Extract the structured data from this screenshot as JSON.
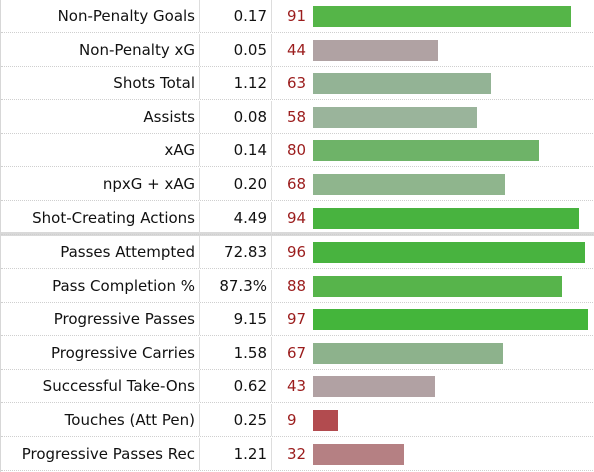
{
  "rows": [
    {
      "stat": "Non-Penalty Goals",
      "per90": "0.17",
      "percentile": "91",
      "pct": 91,
      "color": "#55b548"
    },
    {
      "stat": "Non-Penalty xG",
      "per90": "0.05",
      "percentile": "44",
      "pct": 44,
      "color": "#b0a2a3"
    },
    {
      "stat": "Shots Total",
      "per90": "1.12",
      "percentile": "63",
      "pct": 63,
      "color": "#93b395"
    },
    {
      "stat": "Assists",
      "per90": "0.08",
      "percentile": "58",
      "pct": 58,
      "color": "#9ab49b"
    },
    {
      "stat": "xAG",
      "per90": "0.14",
      "percentile": "80",
      "pct": 80,
      "color": "#6eb368"
    },
    {
      "stat": "npxG + xAG",
      "per90": "0.20",
      "percentile": "68",
      "pct": 68,
      "color": "#8fb58d"
    },
    {
      "stat": "Shot-Creating Actions",
      "per90": "4.49",
      "percentile": "94",
      "pct": 94,
      "color": "#48b33f"
    },
    {
      "stat": "Passes Attempted",
      "per90": "72.83",
      "percentile": "96",
      "pct": 96,
      "color": "#48b33f"
    },
    {
      "stat": "Pass Completion %",
      "per90": "87.3%",
      "percentile": "88",
      "pct": 88,
      "color": "#57b44b"
    },
    {
      "stat": "Progressive Passes",
      "per90": "9.15",
      "percentile": "97",
      "pct": 97,
      "color": "#44b53b"
    },
    {
      "stat": "Progressive Carries",
      "per90": "1.58",
      "percentile": "67",
      "pct": 67,
      "color": "#8db28c"
    },
    {
      "stat": "Successful Take-Ons",
      "per90": "0.62",
      "percentile": "43",
      "pct": 43,
      "color": "#b1a1a3"
    },
    {
      "stat": "Touches (Att Pen)",
      "per90": "0.25",
      "percentile": "9",
      "pct": 9,
      "color": "#b24b4f"
    },
    {
      "stat": "Progressive Passes Rec",
      "per90": "1.21",
      "percentile": "32",
      "pct": 32,
      "color": "#b58083"
    }
  ]
}
